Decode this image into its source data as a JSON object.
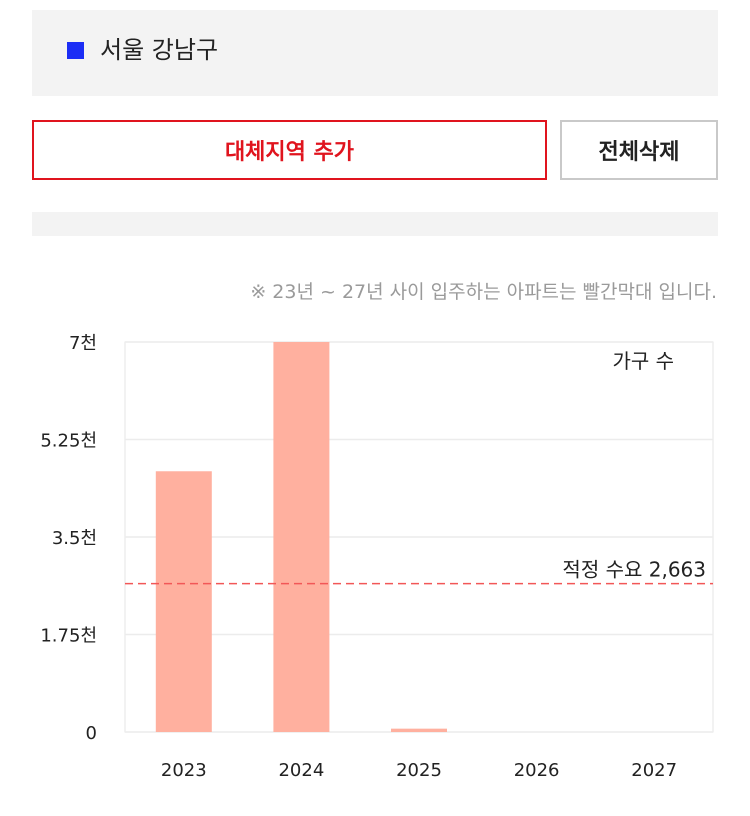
{
  "region": {
    "name": "서울 강남구",
    "marker_color": "#1b2df5"
  },
  "buttons": {
    "add_label": "대체지역 추가",
    "delete_label": "전체삭제"
  },
  "note": "※ 23년 ~ 27년 사이 입주하는 아파트는 빨간막대 입니다.",
  "chart_data": {
    "type": "bar",
    "categories": [
      "2023",
      "2024",
      "2025",
      "2026",
      "2027"
    ],
    "series": [
      {
        "name": "가구 수",
        "values": [
          4680,
          7000,
          60,
          0,
          0
        ],
        "color": "#ffb09f"
      }
    ],
    "ylim": [
      0,
      7000
    ],
    "y_ticks": [
      0,
      1750,
      3500,
      5250,
      7000
    ],
    "y_tick_labels": [
      "0",
      "1.75천",
      "3.5천",
      "5.25천",
      "7천"
    ],
    "legend_label": "가구 수",
    "legend_position": "top-right",
    "reference_line": {
      "label": "적정 수요 2,663",
      "value": 2663,
      "color": "#f25757",
      "style": "dashed"
    },
    "grid": true,
    "xlabel": "",
    "ylabel": ""
  }
}
